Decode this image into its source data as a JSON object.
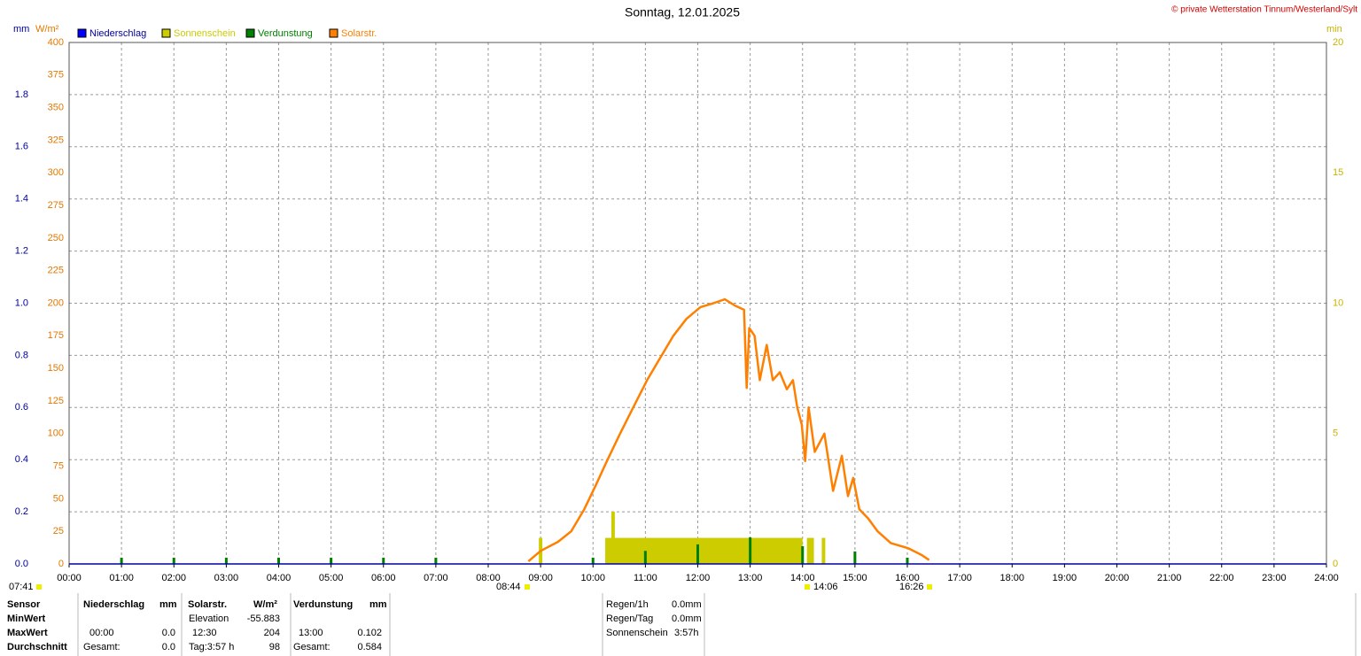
{
  "chart_data": {
    "type": "line",
    "title": "Sonntag, 12.01.2025",
    "copyright": "© private Wetterstation Tinnum/Westerland/Sylt",
    "xlim": [
      "00:00",
      "24:00"
    ],
    "xticks": [
      "00:00",
      "01:00",
      "02:00",
      "03:00",
      "04:00",
      "05:00",
      "06:00",
      "07:00",
      "08:00",
      "09:00",
      "10:00",
      "11:00",
      "12:00",
      "13:00",
      "14:00",
      "15:00",
      "16:00",
      "17:00",
      "18:00",
      "19:00",
      "20:00",
      "21:00",
      "22:00",
      "23:00",
      "24:00"
    ],
    "grid": true,
    "axes": {
      "mm": {
        "label": "mm",
        "color": "#0000a0",
        "lim": [
          0,
          2
        ],
        "ticks": [
          {
            "value": 0,
            "label": "0.0"
          },
          0.2,
          0.4,
          0.6,
          0.8,
          {
            "value": 1,
            "label": "1.0"
          },
          1.2,
          1.4,
          1.6,
          1.8
        ]
      },
      "wm2": {
        "label": "W/m²",
        "color": "#e07800",
        "lim": [
          0,
          400
        ],
        "ticks": [
          0,
          25,
          50,
          75,
          100,
          125,
          150,
          175,
          200,
          225,
          250,
          275,
          300,
          325,
          350,
          375,
          400
        ]
      },
      "min": {
        "label": "min",
        "color": "#c8b400",
        "lim": [
          0,
          20
        ],
        "ticks": [
          0,
          5,
          10,
          15,
          20
        ]
      }
    },
    "series": [
      {
        "name": "Niederschlag",
        "color": "#0000ff",
        "axis": "mm"
      },
      {
        "name": "Sonnenschein",
        "color": "#cccc00",
        "axis": "min",
        "bars": [
          {
            "from": "08:58",
            "to": "09:02",
            "value": 1
          },
          {
            "from": "10:14",
            "to": "14:00",
            "value": 1
          },
          {
            "from": "10:21",
            "to": "10:25",
            "value": 2
          },
          {
            "from": "14:05",
            "to": "14:13",
            "value": 1
          },
          {
            "from": "14:22",
            "to": "14:26",
            "value": 1
          }
        ]
      },
      {
        "name": "Verdunstung",
        "color": "#008000",
        "axis": "mm",
        "x": [
          "01:00",
          "02:00",
          "03:00",
          "04:00",
          "05:00",
          "06:00",
          "07:00",
          "10:00",
          "11:00",
          "12:00",
          "13:00",
          "14:00",
          "15:00",
          "16:00"
        ],
        "values": [
          0.024,
          0.024,
          0.024,
          0.024,
          0.024,
          0.024,
          0.024,
          0.024,
          0.05,
          0.075,
          0.102,
          0.068,
          0.048,
          0.024
        ]
      },
      {
        "name": "Solarstr.",
        "color": "#ff8000",
        "axis": "wm2",
        "x": [
          "08:46",
          "09:00",
          "09:20",
          "09:35",
          "09:50",
          "10:03",
          "10:16",
          "10:31",
          "10:46",
          "11:02",
          "11:17",
          "11:32",
          "11:47",
          "12:03",
          "12:18",
          "12:31",
          "12:43",
          "12:53",
          "12:56",
          "12:59",
          "13:05",
          "13:11",
          "13:19",
          "13:26",
          "13:34",
          "13:42",
          "13:49",
          "13:54",
          "13:59",
          "14:03",
          "14:07",
          "14:14",
          "14:25",
          "14:35",
          "14:45",
          "14:52",
          "14:58",
          "15:05",
          "15:15",
          "15:26",
          "15:41",
          "16:01",
          "16:16",
          "16:25"
        ],
        "values": [
          2,
          10,
          17,
          25,
          42,
          60,
          79,
          100,
          120,
          141,
          158,
          175,
          188,
          197,
          200,
          203,
          198,
          195,
          135,
          181,
          175,
          141,
          168,
          141,
          147,
          134,
          141,
          120,
          107,
          79,
          120,
          86,
          100,
          56,
          83,
          52,
          66,
          42,
          35,
          25,
          16,
          12,
          7,
          3
        ]
      }
    ],
    "annotations": [
      "07:41",
      "08:44",
      "14:06",
      "16:26"
    ]
  },
  "footer": {
    "header": [
      "Sensor",
      "Niederschlag",
      "mm",
      "Solarstr.",
      "W/m²",
      "Verdunstung",
      "mm"
    ],
    "min": {
      "label": "MinWert",
      "solar_label": "Elevation",
      "solar_value": "-55.883"
    },
    "max": {
      "label": "MaxWert",
      "rain_time": "00:00",
      "rain_value": "0.0",
      "solar_time": "12:30",
      "solar_value": "204",
      "evap_time": "13:00",
      "evap_value": "0.102"
    },
    "avg": {
      "label": "Durchschnitt",
      "rain_label": "Gesamt:",
      "rain_value": "0.0",
      "solar_label": "Tag:3:57 h",
      "solar_value": "98",
      "evap_label": "Gesamt:",
      "evap_value": "0.584"
    },
    "summary": [
      [
        "Regen/1h",
        "0.0mm"
      ],
      [
        "Regen/Tag",
        "0.0mm"
      ],
      [
        "Sonnenschein",
        "3:57h"
      ]
    ]
  }
}
